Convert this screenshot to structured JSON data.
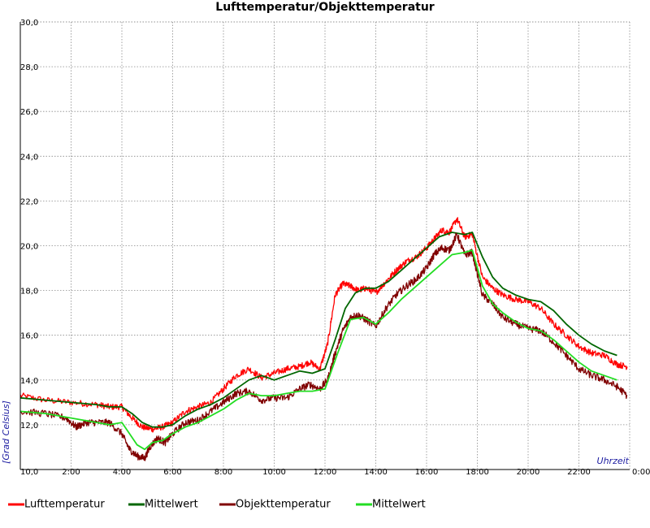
{
  "chart_data": {
    "type": "line",
    "title": "Lufttemperatur/Objekttemperatur",
    "xlabel": "Uhrzeit",
    "ylabel": "[Grad Celsius]",
    "xlim": [
      0,
      24
    ],
    "ylim": [
      10,
      30
    ],
    "yticks": [
      10,
      12,
      14,
      16,
      18,
      20,
      22,
      24,
      26,
      28,
      30
    ],
    "ytick_labels": [
      "10,0",
      "12,0",
      "14,0",
      "16,0",
      "18,0",
      "20,0",
      "22,0",
      "24,0",
      "26,0",
      "28,0",
      "30,0"
    ],
    "xticks": [
      0,
      2,
      4,
      6,
      8,
      10,
      12,
      14,
      16,
      18,
      20,
      22,
      24
    ],
    "xtick_labels": [
      "",
      "2:00",
      "4:00",
      "6:00",
      "8:00",
      "10:00",
      "12:00",
      "14:00",
      "16:00",
      "18:00",
      "20:00",
      "22:00",
      "0:00"
    ],
    "grid": true,
    "legend_position": "bottom",
    "series": [
      {
        "name": "Lufttemperatur",
        "color": "#ff0000",
        "x": [
          0,
          1,
          2,
          3,
          3.5,
          4,
          4.4,
          4.8,
          5.2,
          5.6,
          6,
          6.5,
          7,
          7.5,
          8,
          8.5,
          9,
          9.5,
          10,
          10.5,
          11,
          11.4,
          11.8,
          12.1,
          12.4,
          12.7,
          13,
          13.3,
          13.6,
          14,
          14.4,
          14.8,
          15.2,
          15.6,
          16,
          16.3,
          16.6,
          16.9,
          17.2,
          17.5,
          17.8,
          18.2,
          18.6,
          19,
          19.5,
          20,
          20.5,
          21,
          21.5,
          22,
          22.5,
          23,
          23.5,
          23.9
        ],
        "y": [
          13.3,
          13.1,
          13.0,
          12.9,
          12.8,
          12.8,
          12.3,
          11.9,
          11.8,
          11.9,
          12.1,
          12.6,
          12.8,
          13.0,
          13.6,
          14.2,
          14.5,
          14.1,
          14.3,
          14.5,
          14.6,
          14.8,
          14.5,
          15.6,
          17.8,
          18.3,
          18.2,
          18.0,
          18.1,
          17.9,
          18.4,
          18.9,
          19.3,
          19.5,
          19.9,
          20.3,
          20.7,
          20.6,
          21.2,
          20.4,
          20.5,
          18.6,
          18.1,
          17.8,
          17.6,
          17.5,
          17.2,
          16.5,
          16.0,
          15.5,
          15.2,
          15.1,
          14.7,
          14.6
        ]
      },
      {
        "name": "Mittelwert",
        "color": "#006600",
        "x": [
          0,
          1,
          2,
          3,
          3.5,
          4,
          4.4,
          4.8,
          5.2,
          5.6,
          6,
          6.5,
          7,
          7.5,
          8,
          8.5,
          9,
          9.5,
          10,
          10.5,
          11,
          11.5,
          12,
          12.4,
          12.8,
          13.2,
          13.6,
          14,
          14.5,
          15,
          15.5,
          16,
          16.5,
          17,
          17.5,
          17.8,
          18.2,
          18.6,
          19,
          19.5,
          20,
          20.5,
          21,
          21.5,
          22,
          22.5,
          23,
          23.5
        ],
        "y": [
          13.2,
          13.1,
          13.0,
          12.9,
          12.8,
          12.8,
          12.5,
          12.1,
          11.9,
          11.9,
          12.0,
          12.4,
          12.7,
          12.9,
          13.2,
          13.6,
          14.0,
          14.2,
          14.0,
          14.2,
          14.4,
          14.3,
          14.5,
          15.8,
          17.2,
          17.9,
          18.1,
          18.1,
          18.4,
          18.9,
          19.4,
          19.9,
          20.4,
          20.6,
          20.5,
          20.6,
          19.5,
          18.6,
          18.1,
          17.8,
          17.6,
          17.5,
          17.1,
          16.5,
          16.0,
          15.6,
          15.3,
          15.1
        ]
      },
      {
        "name": "Objekttemperatur",
        "color": "#800000",
        "x": [
          0,
          1,
          1.8,
          2.2,
          2.6,
          3,
          3.5,
          4,
          4.3,
          4.6,
          4.9,
          5.1,
          5.4,
          5.7,
          6,
          6.5,
          7,
          7.5,
          8,
          8.5,
          9,
          9.5,
          10,
          10.5,
          11,
          11.4,
          11.8,
          12.1,
          12.4,
          12.7,
          13,
          13.3,
          13.6,
          14,
          14.4,
          14.8,
          15.2,
          15.6,
          16,
          16.3,
          16.6,
          16.9,
          17.2,
          17.5,
          17.8,
          18.2,
          18.6,
          19,
          19.5,
          20,
          20.5,
          21,
          21.5,
          22,
          22.5,
          23,
          23.5,
          23.9
        ],
        "y": [
          12.6,
          12.5,
          12.3,
          11.9,
          12.1,
          12.1,
          12.1,
          11.6,
          10.9,
          10.6,
          10.5,
          11.0,
          11.4,
          11.2,
          11.6,
          12.1,
          12.2,
          12.6,
          13.0,
          13.4,
          13.5,
          13.1,
          13.2,
          13.2,
          13.6,
          13.8,
          13.6,
          14.0,
          15.2,
          16.2,
          16.8,
          16.9,
          16.7,
          16.4,
          17.2,
          17.8,
          18.2,
          18.5,
          19.0,
          19.6,
          19.9,
          19.8,
          20.5,
          19.6,
          19.7,
          17.8,
          17.4,
          16.8,
          16.5,
          16.3,
          16.2,
          15.7,
          15.1,
          14.5,
          14.2,
          14.0,
          13.7,
          13.3
        ]
      },
      {
        "name": "Mittelwert",
        "color": "#22dd22",
        "x": [
          0,
          1,
          2,
          3,
          3.5,
          4,
          4.3,
          4.6,
          4.9,
          5.2,
          5.6,
          6,
          6.5,
          7,
          7.5,
          8,
          8.5,
          9,
          9.5,
          10,
          10.5,
          11,
          11.5,
          12,
          12.5,
          13,
          13.5,
          14,
          14.5,
          15,
          15.5,
          16,
          16.5,
          17,
          17.5,
          17.8,
          18.2,
          18.6,
          19,
          19.5,
          20,
          20.5,
          21,
          21.5,
          22,
          22.5,
          23,
          23.5
        ],
        "y": [
          12.6,
          12.5,
          12.3,
          12.1,
          12.0,
          12.1,
          11.6,
          11.1,
          10.9,
          11.2,
          11.3,
          11.6,
          11.9,
          12.1,
          12.4,
          12.7,
          13.1,
          13.4,
          13.3,
          13.3,
          13.4,
          13.5,
          13.5,
          13.6,
          15.2,
          16.7,
          16.8,
          16.5,
          17.0,
          17.6,
          18.1,
          18.6,
          19.1,
          19.6,
          19.7,
          19.8,
          18.2,
          17.4,
          17.0,
          16.6,
          16.3,
          16.2,
          15.8,
          15.3,
          14.8,
          14.4,
          14.2,
          14.0
        ]
      }
    ]
  }
}
